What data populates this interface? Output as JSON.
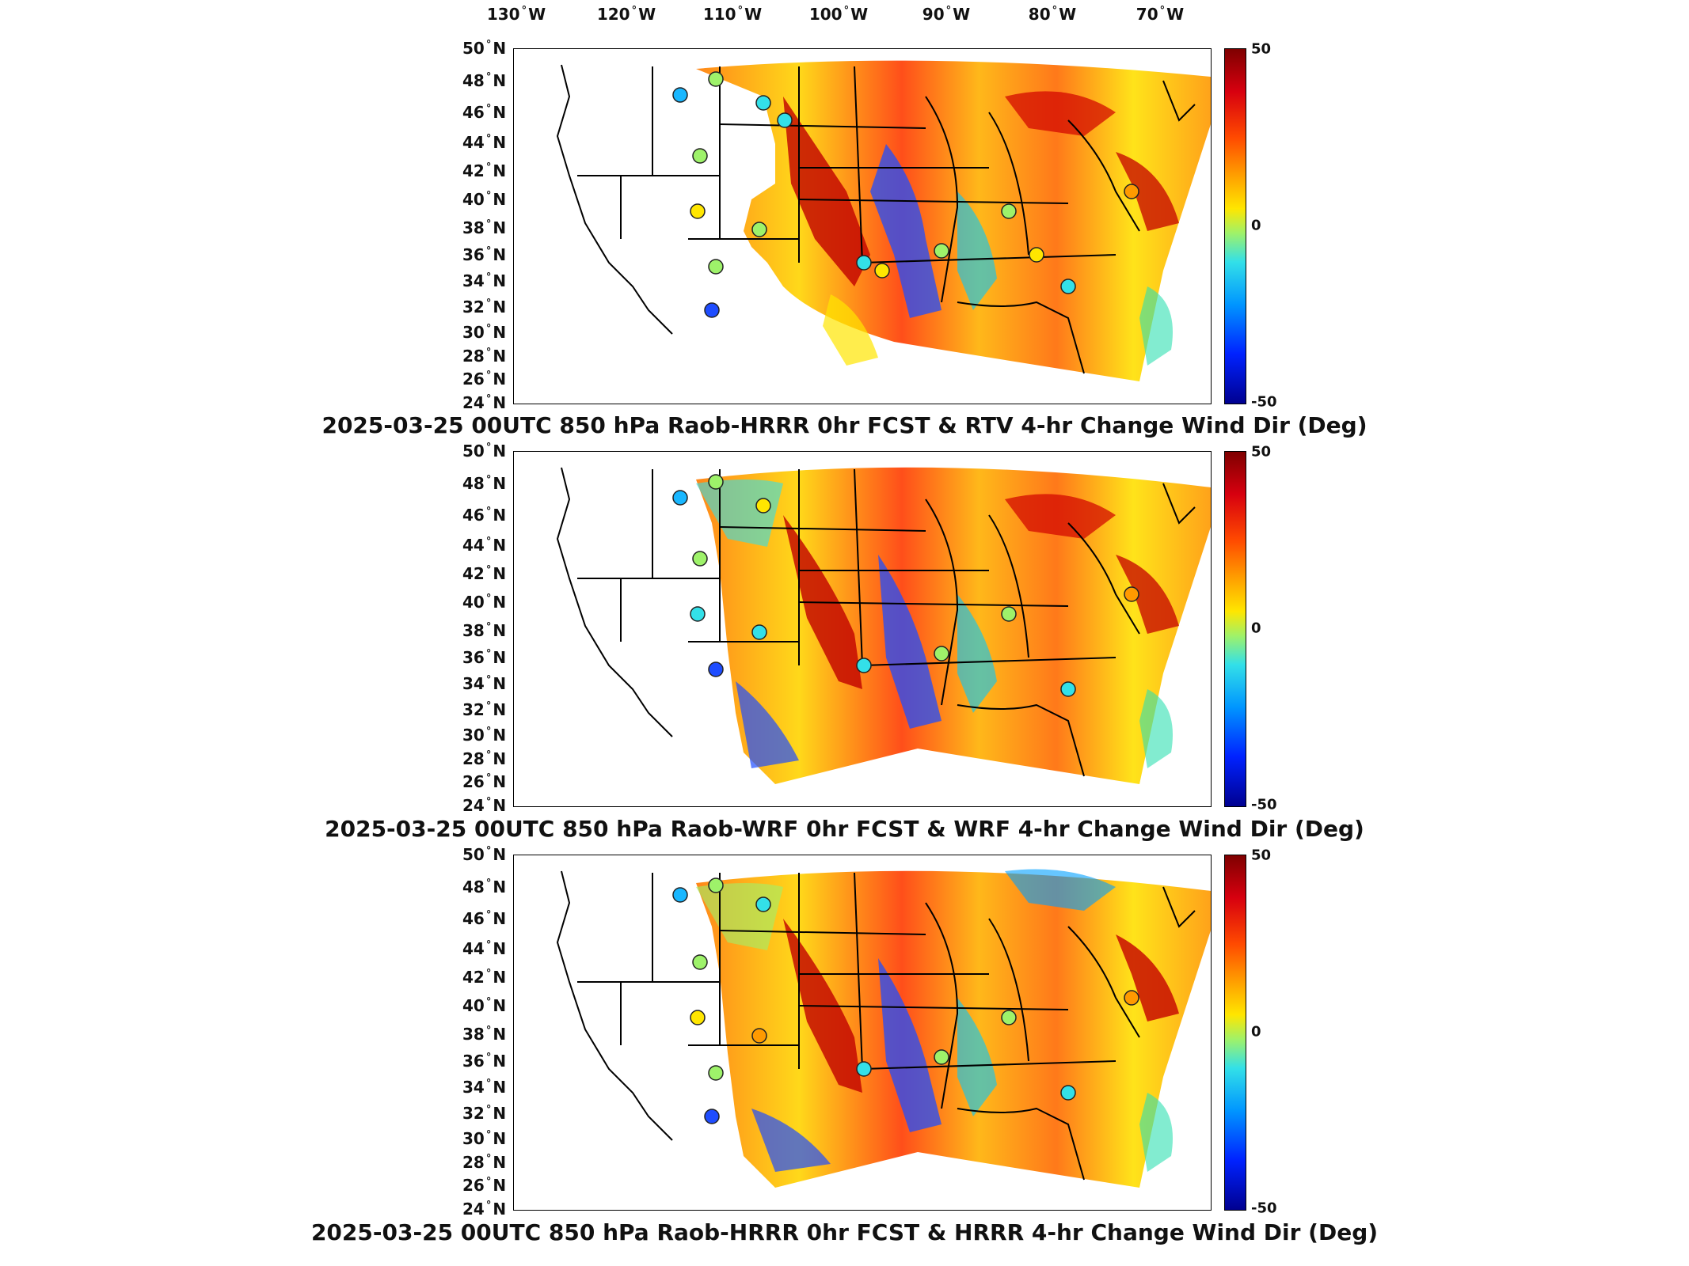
{
  "longitude_labels": [
    "130",
    "120",
    "110",
    "100",
    "90",
    "80",
    "70"
  ],
  "longitude_suffix": "W",
  "latitude_labels": [
    "50",
    "48",
    "46",
    "44",
    "42",
    "40",
    "38",
    "36",
    "34",
    "32",
    "30",
    "28",
    "26",
    "24"
  ],
  "latitude_suffix": "N",
  "colorbar": {
    "max": "50",
    "mid": "0",
    "min": "-50"
  },
  "panels": [
    {
      "title": "2025-03-25 00UTC 850 hPa Raob-HRRR 0hr FCST & RTV 4-hr Change Wind Dir (Deg)"
    },
    {
      "title": "2025-03-25 00UTC 850 hPa Raob-WRF 0hr FCST & WRF 4-hr Change Wind Dir (Deg)"
    },
    {
      "title": "2025-03-25 00UTC 850 hPa Raob-HRRR 0hr FCST & HRRR 4-hr Change Wind Dir (Deg)"
    }
  ],
  "colors": {
    "high": "#7f0000",
    "mid": "#9ef26a",
    "low": "#000090"
  }
}
